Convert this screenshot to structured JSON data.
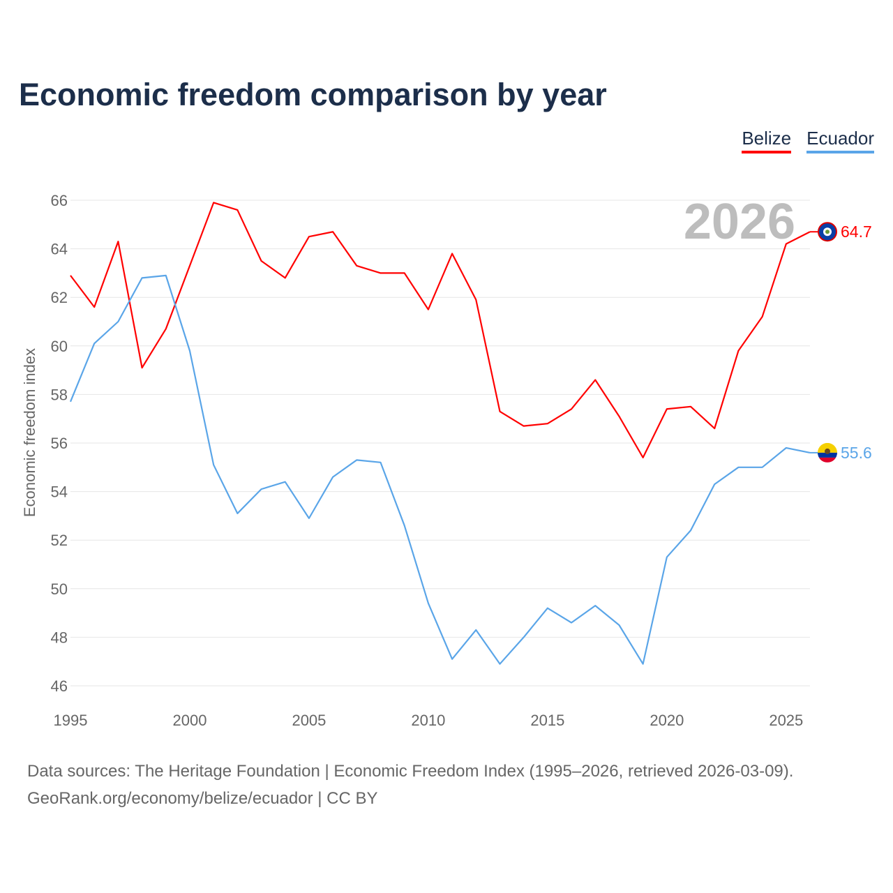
{
  "chart_data": {
    "type": "line",
    "title": "Economic freedom comparison by year",
    "xlabel": "",
    "ylabel": "Economic freedom index",
    "xlim": [
      1995,
      2026
    ],
    "ylim": [
      46,
      66
    ],
    "x_ticks": [
      1995,
      2000,
      2005,
      2010,
      2015,
      2020,
      2025
    ],
    "y_ticks": [
      46,
      48,
      50,
      52,
      54,
      56,
      58,
      60,
      62,
      64,
      66
    ],
    "grid": true,
    "legend_position": "top-right",
    "year_label": "2026",
    "x": [
      1995,
      1996,
      1997,
      1998,
      1999,
      2000,
      2001,
      2002,
      2003,
      2004,
      2005,
      2006,
      2007,
      2008,
      2009,
      2010,
      2011,
      2012,
      2013,
      2014,
      2015,
      2016,
      2017,
      2018,
      2019,
      2020,
      2021,
      2022,
      2023,
      2024,
      2025,
      2026
    ],
    "series": [
      {
        "name": "Belize",
        "color": "#ff0000",
        "end_label": "64.7",
        "flag": "belize-flag",
        "values": [
          62.9,
          61.6,
          64.3,
          59.1,
          60.7,
          63.3,
          65.9,
          65.6,
          63.5,
          62.8,
          64.5,
          64.7,
          63.3,
          63.0,
          63.0,
          61.5,
          63.8,
          61.9,
          57.3,
          56.7,
          56.8,
          57.4,
          58.6,
          57.1,
          55.4,
          57.4,
          57.5,
          56.6,
          59.8,
          61.2,
          64.2,
          64.7
        ]
      },
      {
        "name": "Ecuador",
        "color": "#5aa5e8",
        "end_label": "55.6",
        "flag": "ecuador-flag",
        "values": [
          57.7,
          60.1,
          61.0,
          62.8,
          62.9,
          59.8,
          55.1,
          53.1,
          54.1,
          54.4,
          52.9,
          54.6,
          55.3,
          55.2,
          52.6,
          49.4,
          47.1,
          48.3,
          46.9,
          48.0,
          49.2,
          48.6,
          49.3,
          48.5,
          46.9,
          51.3,
          52.4,
          54.3,
          55.0,
          55.0,
          55.8,
          55.6
        ]
      }
    ]
  },
  "footer": {
    "line1": "Data sources: The Heritage Foundation | Economic Freedom Index (1995–2026, retrieved 2026-03-09).",
    "line2": "GeoRank.org/economy/belize/ecuador | CC BY"
  }
}
